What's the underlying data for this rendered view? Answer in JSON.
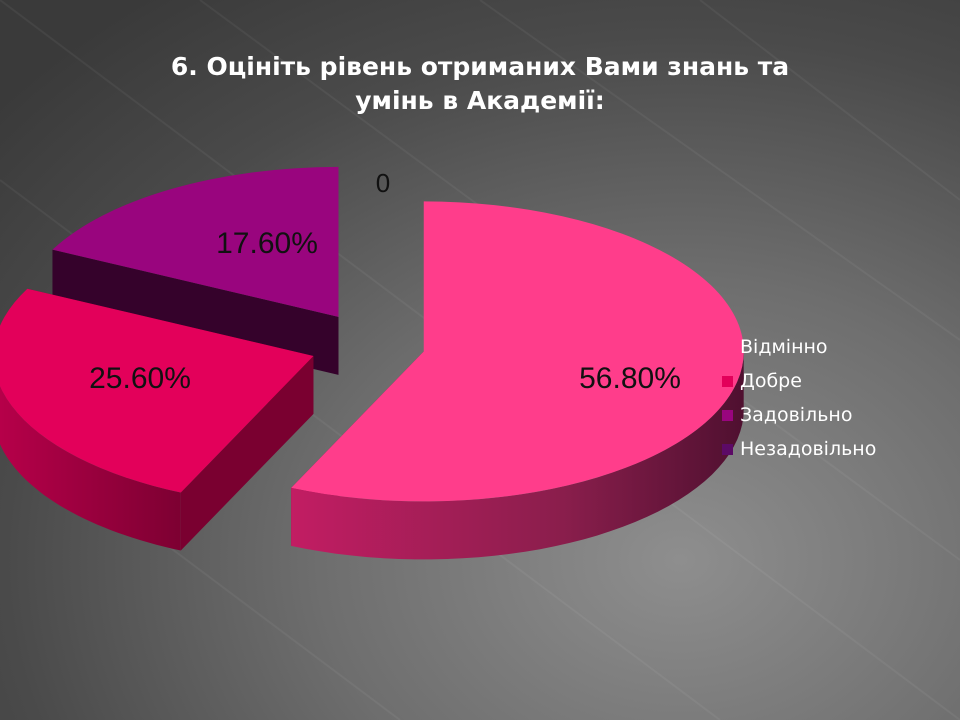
{
  "chart_data": {
    "type": "pie",
    "title_lines": [
      "6. Оцініть рівень отриманих Вами знань та",
      "умінь в Академії:"
    ],
    "categories": [
      "Відмінно",
      "Добре",
      "Задовільно",
      "Незадовільно"
    ],
    "values": [
      56.8,
      25.6,
      17.6,
      0
    ],
    "data_labels": [
      "56.80%",
      "25.60%",
      "17.60%",
      "0"
    ],
    "colors": [
      "#ff3d8b",
      "#e3005a",
      "#99057e",
      "#5c0a66"
    ],
    "style": "3d-exploded",
    "legend": "right"
  }
}
